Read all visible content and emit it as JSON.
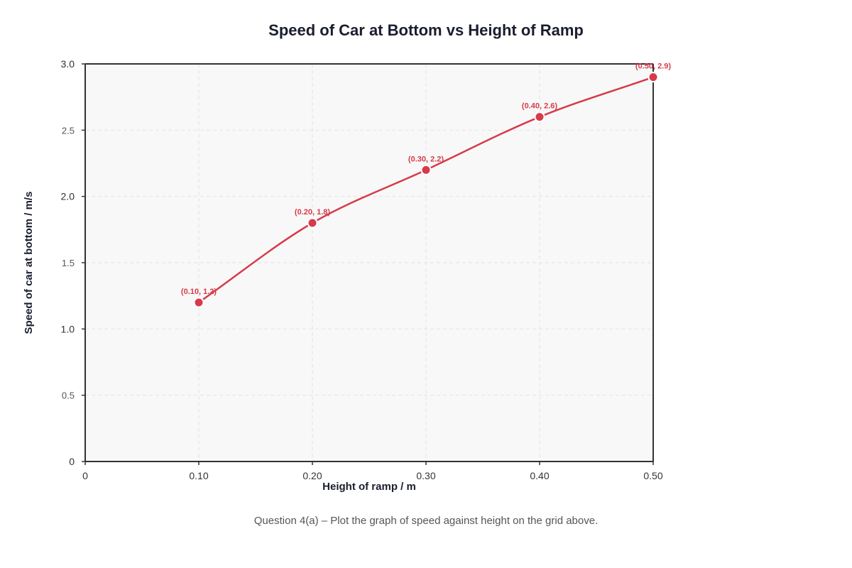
{
  "chart_data": {
    "type": "line",
    "title": "Speed of Car at Bottom vs Height of Ramp",
    "xlabel": "Height of ramp / m",
    "ylabel": "Speed of car at bottom / m/s",
    "xlim": [
      0,
      0.5
    ],
    "ylim": [
      0,
      3.0
    ],
    "x_ticks": [
      "0",
      "0.10",
      "0.20",
      "0.30",
      "0.40",
      "0.50"
    ],
    "y_ticks": [
      "0",
      "0.5",
      "1.0",
      "1.5",
      "2.0",
      "2.5",
      "3.0"
    ],
    "grid": true,
    "series": [
      {
        "x": [
          0.1,
          0.2,
          0.3,
          0.4,
          0.5
        ],
        "y": [
          1.2,
          1.8,
          2.2,
          2.6,
          2.9
        ],
        "point_labels": [
          "(0.10, 1.2)",
          "(0.20, 1.8)",
          "(0.30, 2.2)",
          "(0.40, 2.6)",
          "(0.50, 2.9)"
        ],
        "color": "#d63b4a"
      }
    ]
  },
  "caption": "Question 4(a) – Plot the graph of speed against height on the grid above.",
  "colors": {
    "line": "#d63b4a",
    "plot_background": "#f8f8f8",
    "axis": "#333333",
    "grid": "#e2e2e2",
    "text": "#1a1d2e"
  }
}
